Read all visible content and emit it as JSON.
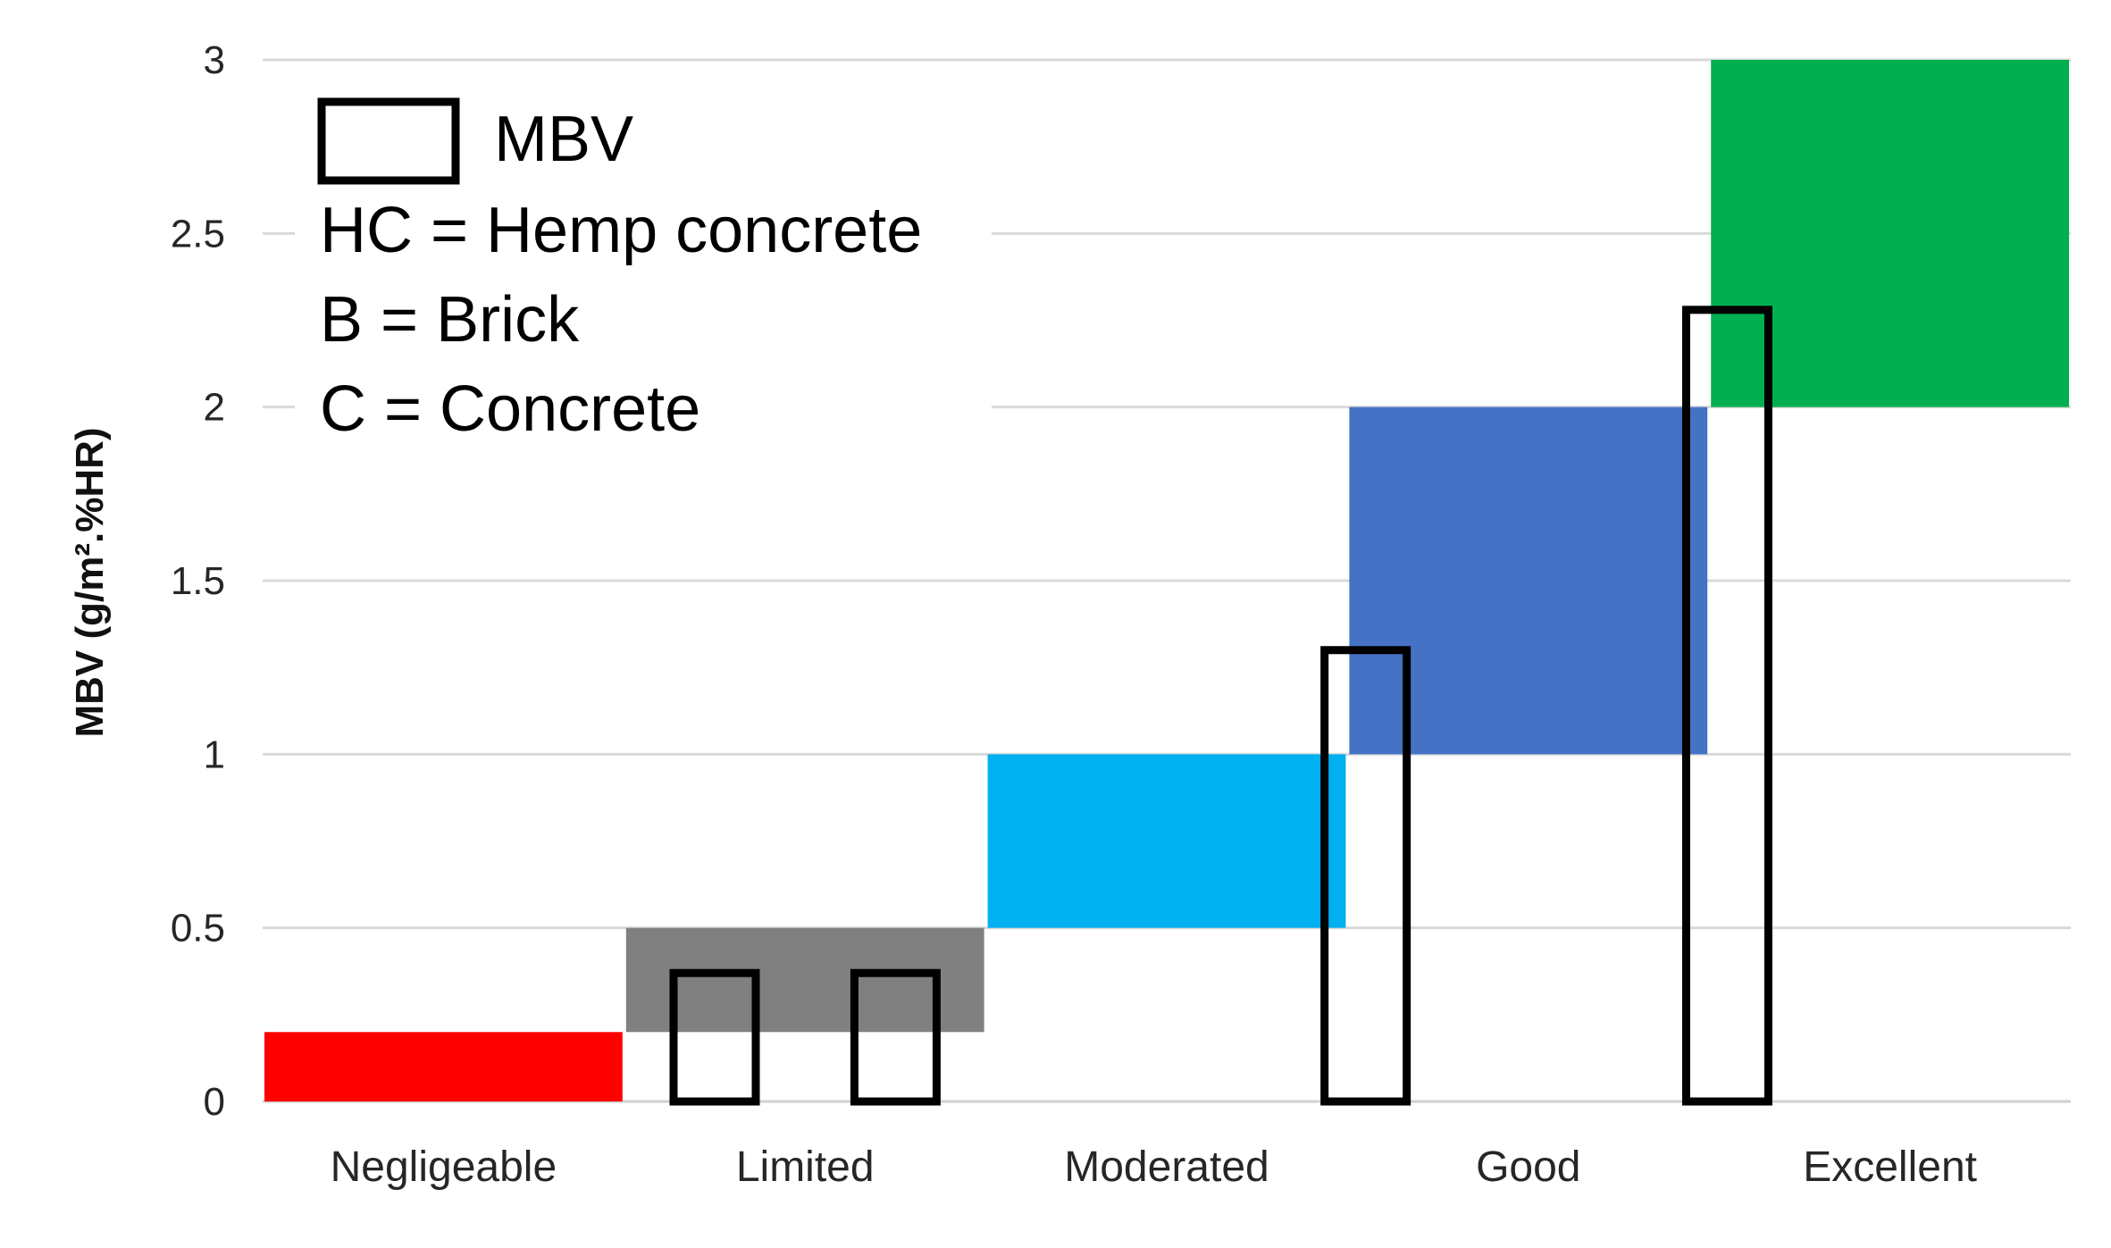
{
  "chart_data": {
    "type": "bar",
    "title": "",
    "xlabel": "",
    "ylabel": "MBV (g/m².%HR)",
    "ylim": [
      0,
      3
    ],
    "yticks": [
      0,
      0.5,
      1,
      1.5,
      2,
      2.5,
      3
    ],
    "grid": true,
    "categories": [
      "Negligeable",
      "Limited",
      "Moderated",
      "Good",
      "Excellent"
    ],
    "class_ranges": [
      {
        "category": "Negligeable",
        "low": 0,
        "high": 0.2,
        "color": "#ff0000"
      },
      {
        "category": "Limited",
        "low": 0.2,
        "high": 0.5,
        "color": "#808080"
      },
      {
        "category": "Moderated",
        "low": 0.5,
        "high": 1.0,
        "color": "#00b0f0"
      },
      {
        "category": "Good",
        "low": 1.0,
        "high": 2.0,
        "color": "#4472c4"
      },
      {
        "category": "Excellent",
        "low": 2.0,
        "high": 3.0,
        "color": "#00b050"
      }
    ],
    "series": [
      {
        "name": "MBV",
        "style": "outline",
        "points": [
          {
            "category": "Limited",
            "offset": -0.25,
            "value": 0.37
          },
          {
            "category": "Limited",
            "offset": 0.25,
            "value": 0.37
          },
          {
            "category": "Good",
            "offset": -0.45,
            "value": 1.3
          },
          {
            "category": "Excellent",
            "offset": -0.45,
            "value": 2.28
          }
        ]
      }
    ],
    "legend": {
      "position": "top-left",
      "marker_label": "MBV",
      "notes": [
        "HC = Hemp concrete",
        "B = Brick",
        "C = Concrete"
      ]
    }
  }
}
